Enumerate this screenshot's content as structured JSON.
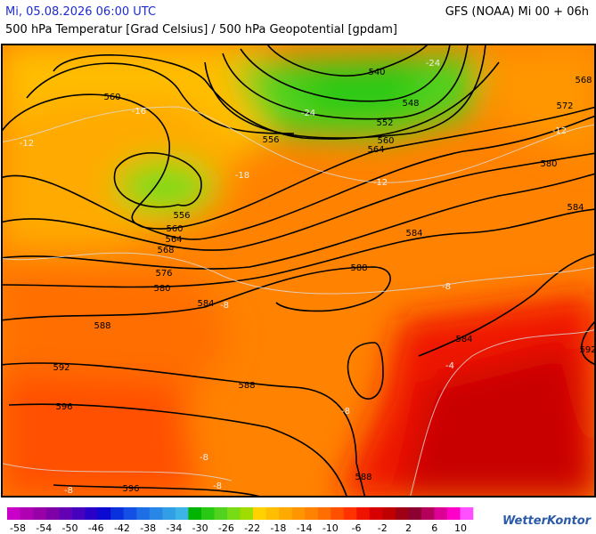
{
  "header": {
    "datetime": "Mi, 05.08.2026 06:00 UTC",
    "model": "GFS (NOAA) Mi 00 + 06h",
    "subtitle": "500 hPa Temperatur [Grad Celsius] / 500 hPa Geopotential [gpdam]"
  },
  "map": {
    "contour_labels": [
      "540",
      "548",
      "552",
      "556",
      "560",
      "564",
      "560",
      "556",
      "560",
      "564",
      "568",
      "572",
      "568",
      "576",
      "580",
      "580",
      "584",
      "584",
      "584",
      "584",
      "588",
      "588",
      "588",
      "588",
      "592",
      "592",
      "596",
      "596"
    ],
    "temperature_labels": [
      "-24",
      "-24",
      "-12",
      "-12",
      "-12",
      "-16",
      "-8",
      "-8",
      "-8",
      "-8",
      "-8",
      "-8",
      "-4",
      "-18"
    ]
  },
  "colorbar": {
    "ticks": [
      -58,
      -54,
      -50,
      -46,
      -42,
      -38,
      -34,
      -30,
      -26,
      -22,
      -18,
      -14,
      -10,
      -6,
      -2,
      2,
      6,
      10
    ],
    "colors": [
      "#c800c8",
      "#b000b4",
      "#9800a8",
      "#8000a8",
      "#6400b4",
      "#4600be",
      "#2800c8",
      "#0a0ad2",
      "#0a32dc",
      "#1450e6",
      "#1e6ee6",
      "#2886e6",
      "#329ee6",
      "#3cb4e6",
      "#00b400",
      "#28c814",
      "#50d21e",
      "#78dc14",
      "#a0dc00",
      "#ffd200",
      "#ffbe00",
      "#ffaa00",
      "#ff9600",
      "#ff8200",
      "#ff6e00",
      "#ff5000",
      "#ff3200",
      "#f01400",
      "#d70000",
      "#be0000",
      "#a00014",
      "#8c0032",
      "#b4005a",
      "#dc0096",
      "#ff00c8",
      "#ff50ff"
    ]
  },
  "brand": "WetterKontor"
}
